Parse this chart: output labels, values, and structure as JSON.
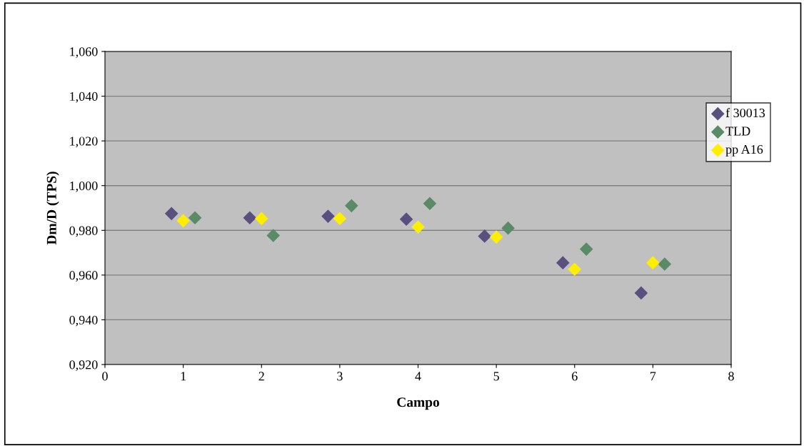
{
  "chart_data": {
    "type": "scatter",
    "xlabel": "Campo",
    "ylabel": "Dm/D (TPS)",
    "xlim": [
      0,
      8
    ],
    "xticks": [
      0,
      1,
      2,
      3,
      4,
      5,
      6,
      7,
      8
    ],
    "ylim": [
      0.92,
      1.06
    ],
    "yticks": [
      {
        "value": 0.92,
        "label": "0,920"
      },
      {
        "value": 0.94,
        "label": "0,940"
      },
      {
        "value": 0.96,
        "label": "0,960"
      },
      {
        "value": 0.98,
        "label": "0,980"
      },
      {
        "value": 1.0,
        "label": "1,000"
      },
      {
        "value": 1.02,
        "label": "1,020"
      },
      {
        "value": 1.04,
        "label": "1,040"
      },
      {
        "value": 1.06,
        "label": "1,060"
      }
    ],
    "grid": "y",
    "legend": "right",
    "marker": "diamond",
    "series": [
      {
        "name": "f 30013",
        "color": "#5a5080",
        "x": [
          0.85,
          1.85,
          2.85,
          3.85,
          4.85,
          5.85,
          6.85
        ],
        "values": [
          0.9875,
          0.9856,
          0.9863,
          0.985,
          0.9774,
          0.9655,
          0.952
        ]
      },
      {
        "name": "TLD",
        "color": "#5a8a66",
        "x": [
          1.15,
          2.15,
          3.15,
          4.15,
          5.15,
          6.15,
          7.15
        ],
        "values": [
          0.9856,
          0.9777,
          0.991,
          0.992,
          0.981,
          0.9716,
          0.9649
        ]
      },
      {
        "name": "pp A16",
        "color": "#ffee00",
        "x": [
          1,
          2,
          3,
          4,
          5,
          6,
          7
        ],
        "values": [
          0.9843,
          0.9853,
          0.9853,
          0.9815,
          0.977,
          0.9626,
          0.9655
        ]
      }
    ]
  }
}
